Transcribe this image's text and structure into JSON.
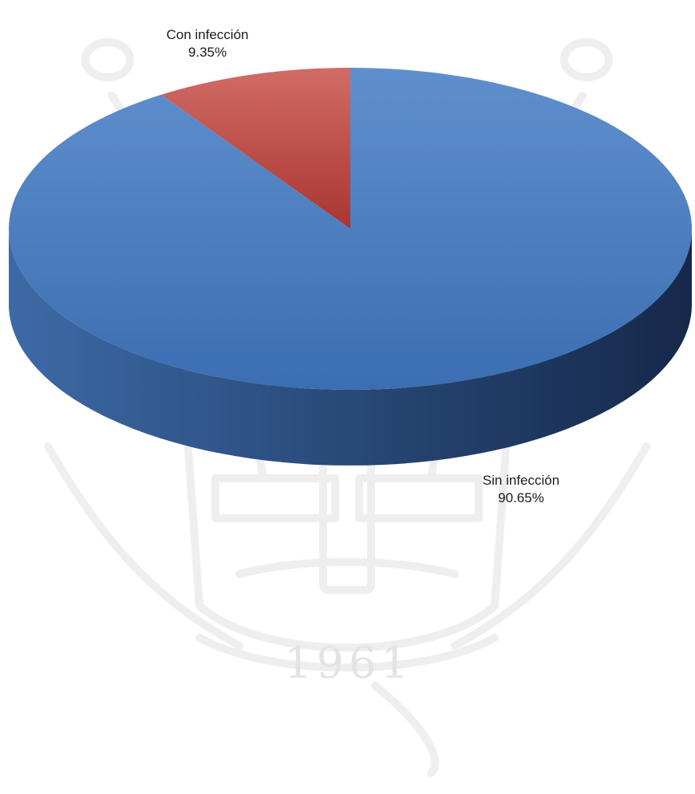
{
  "watermark": {
    "type": "university-crest",
    "year_text": "1961"
  },
  "chart_data": {
    "type": "pie",
    "style": "3d",
    "title": "",
    "slices": [
      {
        "label": "Sin infección",
        "value": 90.65,
        "value_text": "90.65%",
        "color": "#4a7ebf"
      },
      {
        "label": "Con infección",
        "value": 9.35,
        "value_text": "9.35%",
        "color": "#c0504d"
      }
    ],
    "legend": "none",
    "start_angle": "12 o'clock",
    "direction": "counter-clockwise"
  }
}
